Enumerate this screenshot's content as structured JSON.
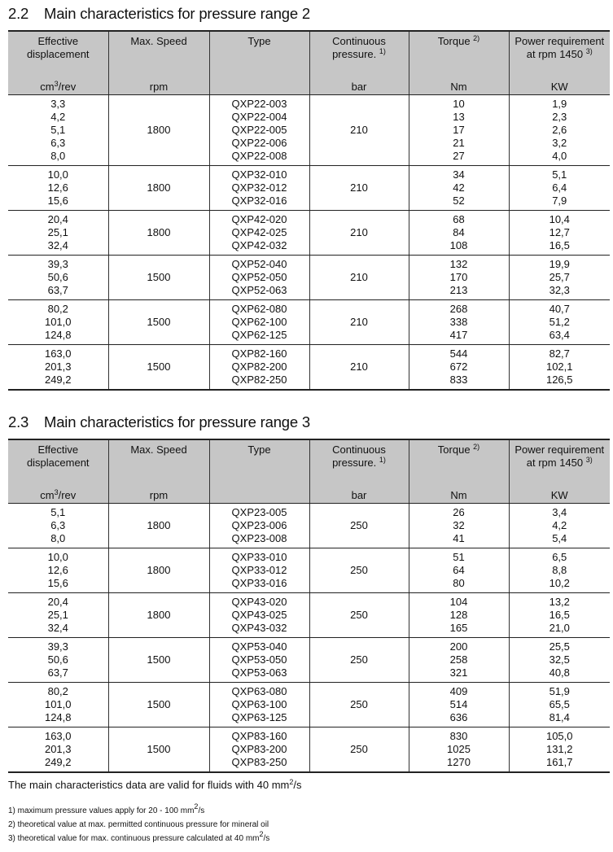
{
  "tables": [
    {
      "title_num": "2.2",
      "title": "Main characteristics for pressure range 2",
      "groups": [
        {
          "displacement": [
            "3,3",
            "4,2",
            "5,1",
            "6,3",
            "8,0"
          ],
          "speed": "1800",
          "type": [
            "QXP22-003",
            "QXP22-004",
            "QXP22-005",
            "QXP22-006",
            "QXP22-008"
          ],
          "pressure": "210",
          "torque": [
            "10",
            "13",
            "17",
            "21",
            "27"
          ],
          "power": [
            "1,9",
            "2,3",
            "2,6",
            "3,2",
            "4,0"
          ]
        },
        {
          "displacement": [
            "10,0",
            "12,6",
            "15,6"
          ],
          "speed": "1800",
          "type": [
            "QXP32-010",
            "QXP32-012",
            "QXP32-016"
          ],
          "pressure": "210",
          "torque": [
            "34",
            "42",
            "52"
          ],
          "power": [
            "5,1",
            "6,4",
            "7,9"
          ]
        },
        {
          "displacement": [
            "20,4",
            "25,1",
            "32,4"
          ],
          "speed": "1800",
          "type": [
            "QXP42-020",
            "QXP42-025",
            "QXP42-032"
          ],
          "pressure": "210",
          "torque": [
            "68",
            "84",
            "108"
          ],
          "power": [
            "10,4",
            "12,7",
            "16,5"
          ]
        },
        {
          "displacement": [
            "39,3",
            "50,6",
            "63,7"
          ],
          "speed": "1500",
          "type": [
            "QXP52-040",
            "QXP52-050",
            "QXP52-063"
          ],
          "pressure": "210",
          "torque": [
            "132",
            "170",
            "213"
          ],
          "power": [
            "19,9",
            "25,7",
            "32,3"
          ]
        },
        {
          "displacement": [
            "80,2",
            "101,0",
            "124,8"
          ],
          "speed": "1500",
          "type": [
            "QXP62-080",
            "QXP62-100",
            "QXP62-125"
          ],
          "pressure": "210",
          "torque": [
            "268",
            "338",
            "417"
          ],
          "power": [
            "40,7",
            "51,2",
            "63,4"
          ]
        },
        {
          "displacement": [
            "163,0",
            "201,3",
            "249,2"
          ],
          "speed": "1500",
          "type": [
            "QXP82-160",
            "QXP82-200",
            "QXP82-250"
          ],
          "pressure": "210",
          "torque": [
            "544",
            "672",
            "833"
          ],
          "power": [
            "82,7",
            "102,1",
            "126,5"
          ]
        }
      ]
    },
    {
      "title_num": "2.3",
      "title": "Main characteristics for pressure range 3",
      "groups": [
        {
          "displacement": [
            "5,1",
            "6,3",
            "8,0"
          ],
          "speed": "1800",
          "type": [
            "QXP23-005",
            "QXP23-006",
            "QXP23-008"
          ],
          "pressure": "250",
          "torque": [
            "26",
            "32",
            "41"
          ],
          "power": [
            "3,4",
            "4,2",
            "5,4"
          ]
        },
        {
          "displacement": [
            "10,0",
            "12,6",
            "15,6"
          ],
          "speed": "1800",
          "type": [
            "QXP33-010",
            "QXP33-012",
            "QXP33-016"
          ],
          "pressure": "250",
          "torque": [
            "51",
            "64",
            "80"
          ],
          "power": [
            "6,5",
            "8,8",
            "10,2"
          ]
        },
        {
          "displacement": [
            "20,4",
            "25,1",
            "32,4"
          ],
          "speed": "1800",
          "type": [
            "QXP43-020",
            "QXP43-025",
            "QXP43-032"
          ],
          "pressure": "250",
          "torque": [
            "104",
            "128",
            "165"
          ],
          "power": [
            "13,2",
            "16,5",
            "21,0"
          ]
        },
        {
          "displacement": [
            "39,3",
            "50,6",
            "63,7"
          ],
          "speed": "1500",
          "type": [
            "QXP53-040",
            "QXP53-050",
            "QXP53-063"
          ],
          "pressure": "250",
          "torque": [
            "200",
            "258",
            "321"
          ],
          "power": [
            "25,5",
            "32,5",
            "40,8"
          ]
        },
        {
          "displacement": [
            "80,2",
            "101,0",
            "124,8"
          ],
          "speed": "1500",
          "type": [
            "QXP63-080",
            "QXP63-100",
            "QXP63-125"
          ],
          "pressure": "250",
          "torque": [
            "409",
            "514",
            "636"
          ],
          "power": [
            "51,9",
            "65,5",
            "81,4"
          ]
        },
        {
          "displacement": [
            "163,0",
            "201,3",
            "249,2"
          ],
          "speed": "1500",
          "type": [
            "QXP83-160",
            "QXP83-200",
            "QXP83-250"
          ],
          "pressure": "250",
          "torque": [
            "830",
            "1025",
            "1270"
          ],
          "power": [
            "105,0",
            "131,2",
            "161,7"
          ]
        }
      ]
    }
  ],
  "columns": [
    {
      "key": "displacement",
      "label": "Effective displacement",
      "note": "",
      "unit_base": "cm",
      "unit_sup": "3",
      "unit_rest": "/rev"
    },
    {
      "key": "speed",
      "label": "Max. Speed",
      "note": "",
      "unit_base": "rpm",
      "unit_sup": "",
      "unit_rest": ""
    },
    {
      "key": "type",
      "label": "Type",
      "note": "",
      "unit_base": "",
      "unit_sup": "",
      "unit_rest": ""
    },
    {
      "key": "pressure",
      "label": "Continuous pressure.",
      "note": "1)",
      "unit_base": "bar",
      "unit_sup": "",
      "unit_rest": ""
    },
    {
      "key": "torque",
      "label": "Torque",
      "note": "2)",
      "unit_base": "Nm",
      "unit_sup": "",
      "unit_rest": ""
    },
    {
      "key": "power",
      "label": "Power requirement at rpm 1450",
      "note": "3)",
      "unit_base": "KW",
      "unit_sup": "",
      "unit_rest": ""
    }
  ],
  "validity": {
    "text": "The main characteristics data are valid for fluids with 40 mm",
    "sup": "2",
    "rest": "/s"
  },
  "footnotes": [
    {
      "text": "1) maximum pressure values apply for 20 - 100 mm",
      "sup": "2",
      "rest": "/s"
    },
    {
      "text": "2) theoretical value at max. permitted continuous pressure for mineral oil",
      "sup": "",
      "rest": ""
    },
    {
      "text": "3) theoretical value for max. continuous pressure calculated at 40 mm",
      "sup": "2",
      "rest": "/s"
    }
  ]
}
